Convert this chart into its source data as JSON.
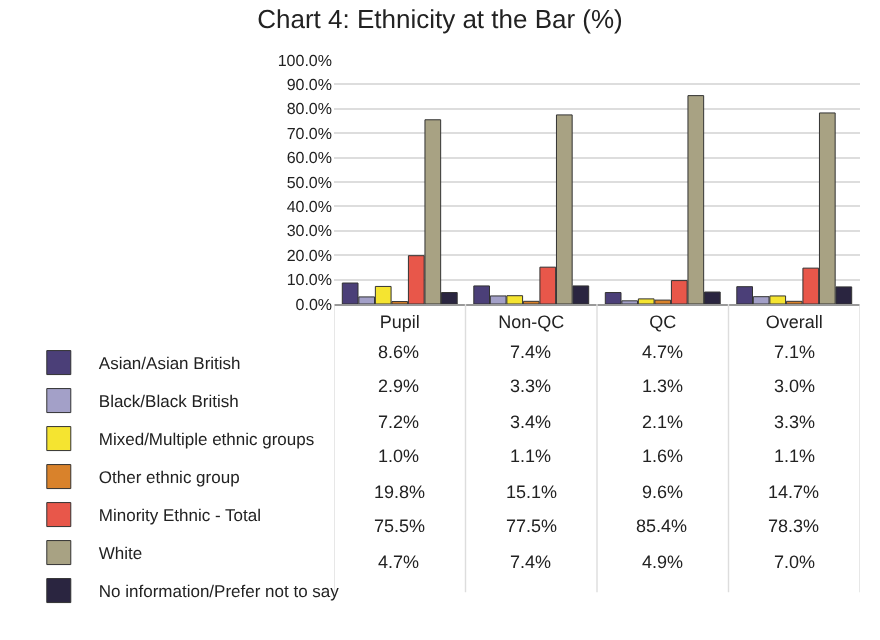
{
  "chart_data": {
    "type": "bar",
    "title": "Chart 4: Ethnicity at the Bar (%)",
    "categories": [
      "Pupil",
      "Non-QC",
      "QC",
      "Overall"
    ],
    "series": [
      {
        "name": "Asian/Asian British",
        "color": "#4b3f78",
        "values": [
          8.6,
          7.4,
          4.7,
          7.1
        ],
        "value_labels": [
          "8.6%",
          "7.4%",
          "4.7%",
          "7.1%"
        ]
      },
      {
        "name": "Black/Black British",
        "color": "#a3a0c8",
        "values": [
          2.9,
          3.3,
          1.3,
          3.0
        ],
        "value_labels": [
          "2.9%",
          "3.3%",
          "1.3%",
          "3.0%"
        ]
      },
      {
        "name": "Mixed/Multiple ethnic groups",
        "color": "#f5e430",
        "values": [
          7.2,
          3.4,
          2.1,
          3.3
        ],
        "value_labels": [
          "7.2%",
          "3.4%",
          "2.1%",
          "3.3%"
        ]
      },
      {
        "name": "Other ethnic group",
        "color": "#d9822b",
        "values": [
          1.0,
          1.1,
          1.6,
          1.1
        ],
        "value_labels": [
          "1.0%",
          "1.1%",
          "1.6%",
          "1.1%"
        ]
      },
      {
        "name": "Minority Ethnic - Total",
        "color": "#e8574a",
        "values": [
          19.8,
          15.1,
          9.6,
          14.7
        ],
        "value_labels": [
          "19.8%",
          "15.1%",
          "9.6%",
          "14.7%"
        ]
      },
      {
        "name": "White",
        "color": "#a8a283",
        "values": [
          75.5,
          77.5,
          85.4,
          78.3
        ],
        "value_labels": [
          "75.5%",
          "77.5%",
          "85.4%",
          "78.3%"
        ]
      },
      {
        "name": "No information/Prefer not to say",
        "color": "#2a2540",
        "values": [
          4.7,
          7.4,
          4.9,
          7.0
        ],
        "value_labels": [
          "4.7%",
          "7.4%",
          "4.9%",
          "7.0%"
        ]
      }
    ],
    "ylim": [
      0,
      100
    ],
    "yticks": [
      {
        "value": 0,
        "label": "0.0%"
      },
      {
        "value": 10,
        "label": "10.0%"
      },
      {
        "value": 20,
        "label": "20.0%"
      },
      {
        "value": 30,
        "label": "30.0%"
      },
      {
        "value": 40,
        "label": "40.0%"
      },
      {
        "value": 50,
        "label": "50.0%"
      },
      {
        "value": 60,
        "label": "60.0%"
      },
      {
        "value": 70,
        "label": "70.0%"
      },
      {
        "value": 80,
        "label": "80.0%"
      },
      {
        "value": 90,
        "label": "90.0%"
      },
      {
        "value": 100,
        "label": "100.0%"
      }
    ],
    "grid": "y",
    "legend": "bottom left"
  }
}
